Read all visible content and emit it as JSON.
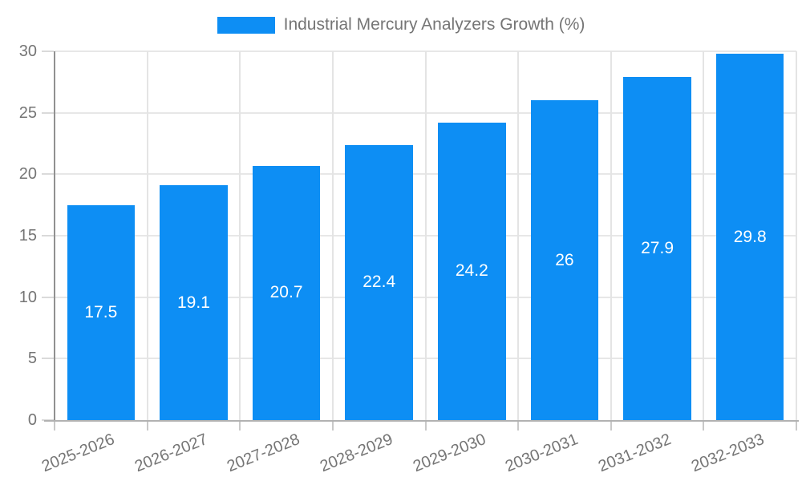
{
  "chart_data": {
    "type": "bar",
    "title": "Industrial Mercury Analyzers Growth (%)",
    "categories": [
      "2025-2026",
      "2026-2027",
      "2027-2028",
      "2028-2029",
      "2029-2030",
      "2030-2031",
      "2031-2032",
      "2032-2033"
    ],
    "values": [
      17.5,
      19.1,
      20.7,
      22.4,
      24.2,
      26,
      27.9,
      29.8
    ],
    "series": [
      {
        "name": "Industrial Mercury Analyzers Growth (%)",
        "values": [
          17.5,
          19.1,
          20.7,
          22.4,
          24.2,
          26,
          27.9,
          29.8
        ]
      }
    ],
    "xlabel": "",
    "ylabel": "",
    "ylim": [
      0,
      30
    ],
    "yticks": [
      0,
      5,
      10,
      15,
      20,
      25,
      30
    ],
    "grid": true,
    "legend_position": "top-center",
    "value_labels": "inside-center",
    "colors": {
      "bar": "#0d8ef4",
      "value_label": "#ffffff",
      "axis_text": "#757575",
      "gridline": "#e7e7e7",
      "axis_line": "#919191",
      "background": "#ffffff"
    }
  },
  "legend": {
    "label": "Industrial Mercury Analyzers Growth (%)",
    "swatch_color": "#0d8ef4"
  }
}
